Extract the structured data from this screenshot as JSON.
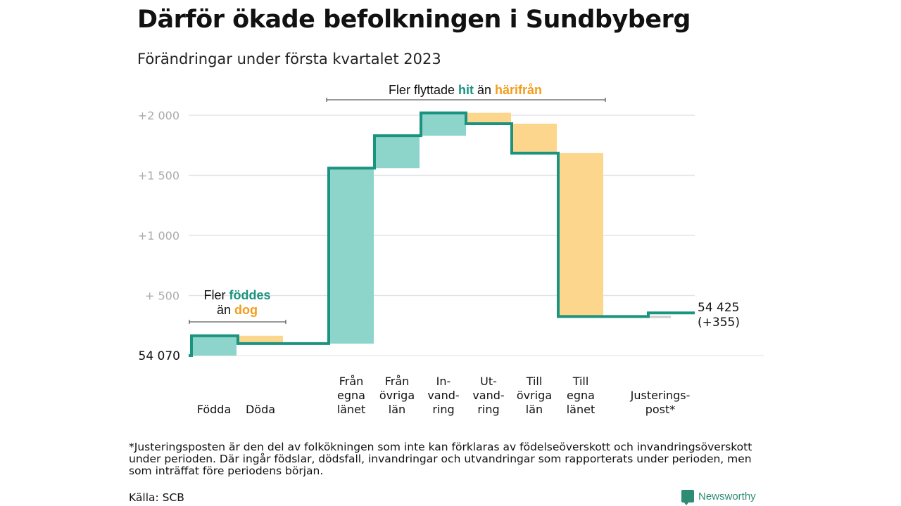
{
  "header": {
    "title": "Därför ökade befolkningen i Sundbyberg",
    "subtitle": "Förändringar under första kvartalet 2023"
  },
  "chart_data": {
    "type": "waterfall",
    "title": "Därför ökade befolkningen i Sundbyberg",
    "subtitle": "Förändringar under första kvartalet 2023",
    "start_label": "54 070",
    "start_value": 54070,
    "end_label": "54 425",
    "end_change_label": "(+355)",
    "end_value": 54425,
    "y_ticks": [
      {
        "value": 500,
        "label": "+ 500"
      },
      {
        "value": 1000,
        "label": "+1 000"
      },
      {
        "value": 1500,
        "label": "+1 500"
      },
      {
        "value": 2000,
        "label": "+2 000"
      }
    ],
    "ylim": [
      0,
      2000
    ],
    "grid": true,
    "categories": [
      {
        "label": [
          "Födda"
        ],
        "value": 165,
        "direction": "in"
      },
      {
        "label": [
          "Döda"
        ],
        "value": -65,
        "direction": "out"
      },
      {
        "label": [
          "Från",
          "egna",
          "länet"
        ],
        "value": 1460,
        "direction": "in"
      },
      {
        "label": [
          "Från",
          "övriga",
          "län"
        ],
        "value": 270,
        "direction": "in"
      },
      {
        "label": [
          "In-",
          "vand-",
          "ring"
        ],
        "value": 190,
        "direction": "in"
      },
      {
        "label": [
          "Ut-",
          "vand-",
          "ring"
        ],
        "value": -90,
        "direction": "out"
      },
      {
        "label": [
          "Till",
          "övriga",
          "län"
        ],
        "value": -245,
        "direction": "out"
      },
      {
        "label": [
          "Till",
          "egna",
          "länet"
        ],
        "value": -1360,
        "direction": "out"
      },
      {
        "label": [
          "Justerings-",
          "post*"
        ],
        "value": 30,
        "direction": "adjust"
      }
    ],
    "annotations": {
      "births": {
        "text_before": "Fler ",
        "highlight_in": "föddes",
        "line2_before": "än ",
        "highlight_out": "dog"
      },
      "moves": {
        "text_before": "Fler flyttade ",
        "highlight_in": "hit",
        "text_middle": " än ",
        "highlight_out": "härifrån"
      }
    },
    "colors": {
      "in_fill": "#8dd4cb",
      "out_fill": "#fbd68c",
      "adjust_fill": "#cccccc",
      "line": "#1a937f",
      "in_text": "#1a937f",
      "out_text": "#f39c1b",
      "grid": "#e3e3e8",
      "tick_text": "#aaaaaa"
    }
  },
  "footer": {
    "footnote": "*Justeringsposten är den del av folkökningen som inte kan förklaras av födelseöverskott och invandringsöverskott under perioden. Där ingår födslar, dödsfall, invandringar och utvandringar som rapporterats under perioden, men som inträffat före periodens början.",
    "source": "Källa: SCB",
    "brand": "Newsworthy"
  }
}
